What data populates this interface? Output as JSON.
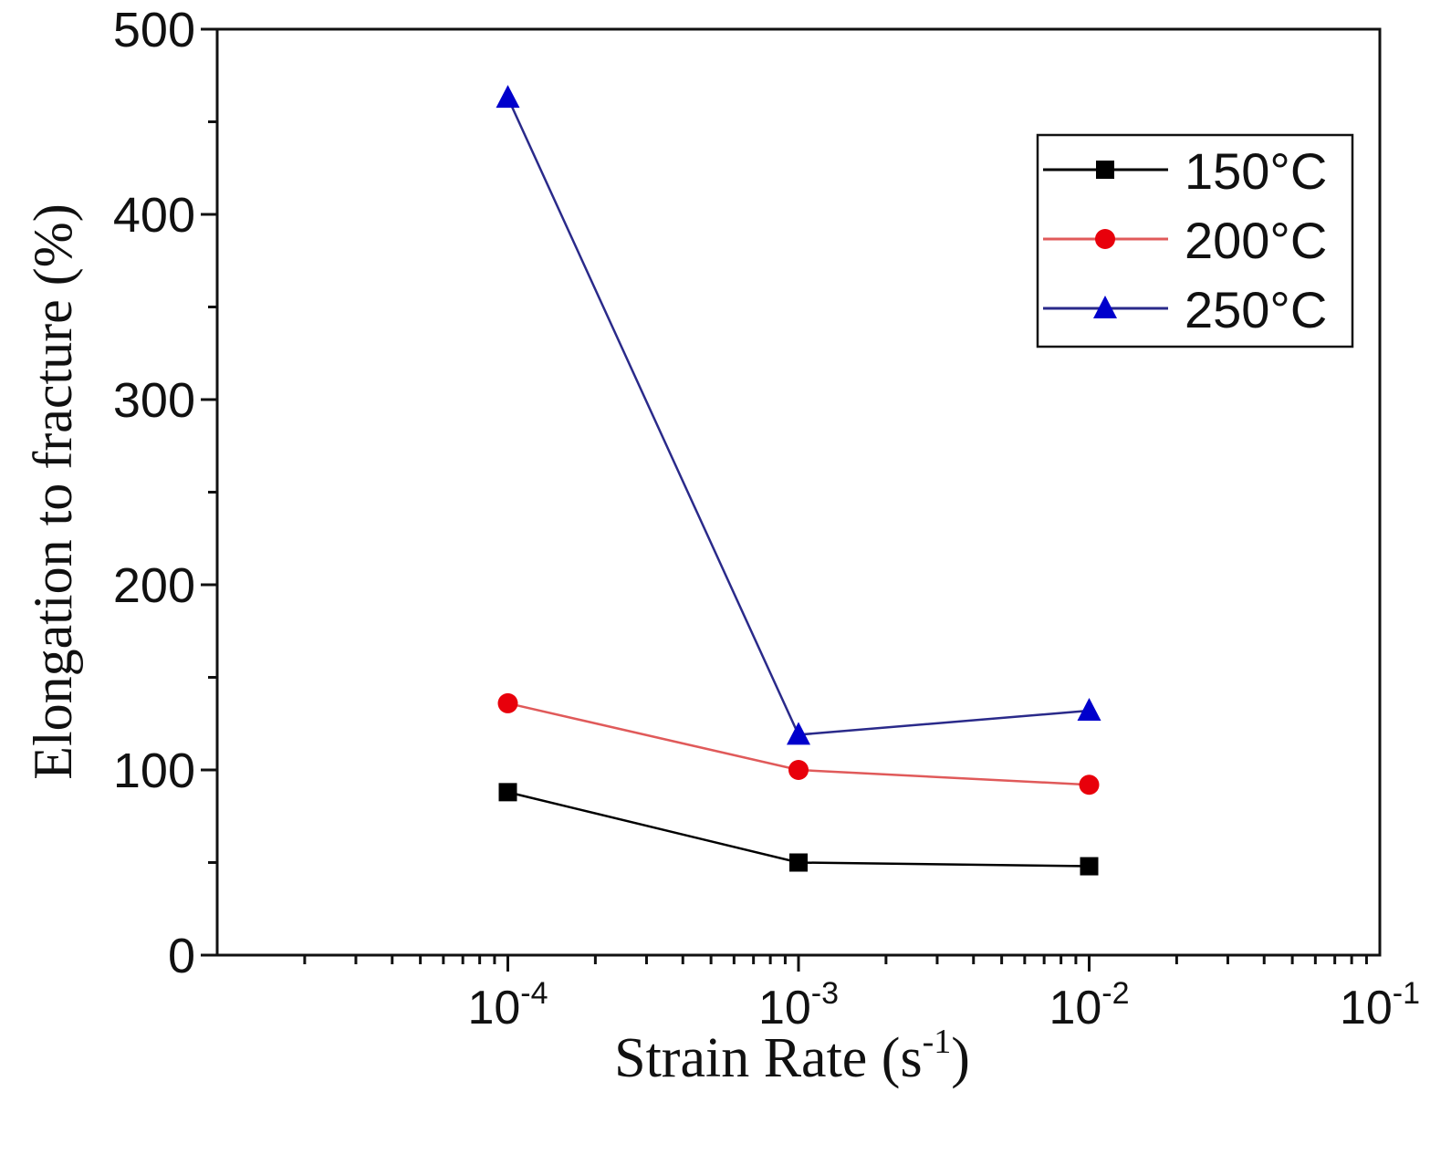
{
  "chart_data": {
    "type": "line",
    "title": "",
    "xlabel_main": "Strain Rate (s",
    "xlabel_sup": "-1",
    "xlabel_close": ")",
    "ylabel": "Elongation to fracture (%)",
    "x_scale": "log",
    "xlim": [
      1e-05,
      0.1
    ],
    "ylim": [
      0,
      500
    ],
    "x_ticks": [
      {
        "value": 0.0001,
        "base": "10",
        "exp": "-4"
      },
      {
        "value": 0.001,
        "base": "10",
        "exp": "-3"
      },
      {
        "value": 0.01,
        "base": "10",
        "exp": "-2"
      },
      {
        "value": 0.1,
        "base": "10",
        "exp": "-1"
      }
    ],
    "y_ticks": [
      0,
      100,
      200,
      300,
      400,
      500
    ],
    "legend_position": "top-right",
    "series": [
      {
        "name": "150°C",
        "color": "#000000",
        "marker": "square",
        "x": [
          0.0001,
          0.001,
          0.01
        ],
        "y": [
          88,
          50,
          48
        ]
      },
      {
        "name": "200°C",
        "color": "#e8000b",
        "line_color": "#e05a5a",
        "marker": "circle",
        "x": [
          0.0001,
          0.001,
          0.01
        ],
        "y": [
          136,
          100,
          92
        ]
      },
      {
        "name": "250°C",
        "color": "#0000cc",
        "line_color": "#2a2a8a",
        "marker": "triangle",
        "x": [
          0.0001,
          0.001,
          0.01
        ],
        "y": [
          463,
          119,
          132
        ]
      }
    ]
  }
}
